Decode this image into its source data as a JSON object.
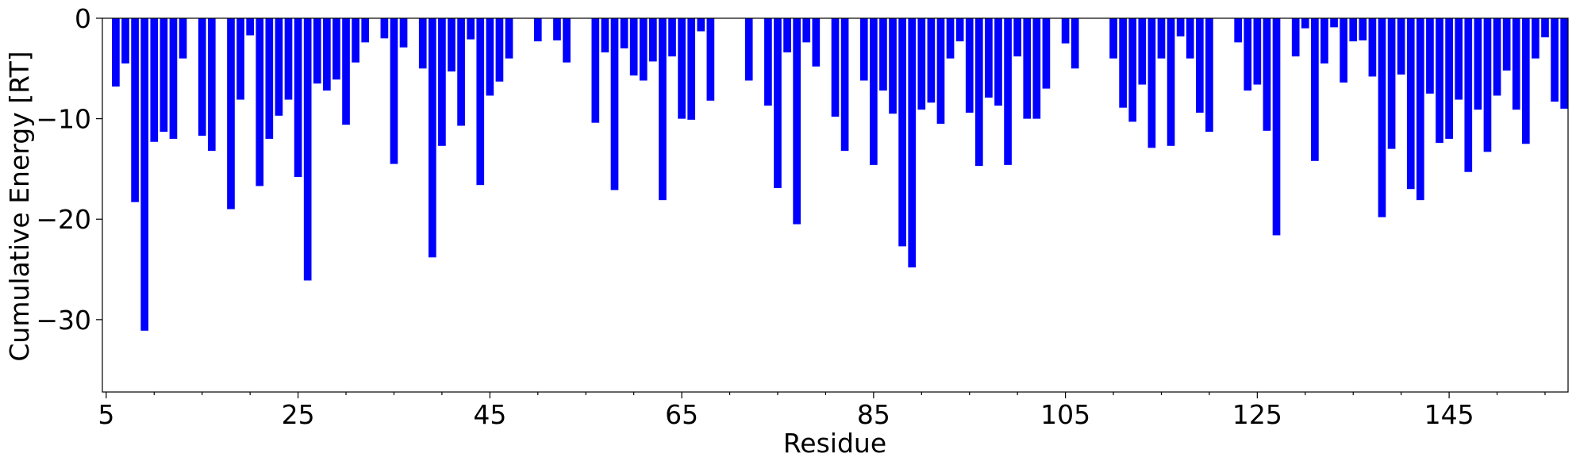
{
  "chart_data": {
    "type": "bar",
    "x_label": "Residue",
    "y_label": "Cumulative Energy [RT]",
    "color": "#0000ff",
    "x": [
      6,
      7,
      8,
      9,
      10,
      11,
      12,
      13,
      15,
      16,
      18,
      19,
      20,
      21,
      22,
      23,
      24,
      25,
      26,
      27,
      28,
      29,
      30,
      31,
      32,
      34,
      35,
      36,
      38,
      39,
      40,
      41,
      42,
      43,
      44,
      45,
      46,
      47,
      50,
      52,
      53,
      56,
      57,
      58,
      59,
      60,
      61,
      62,
      63,
      64,
      65,
      66,
      67,
      68,
      72,
      74,
      75,
      76,
      77,
      78,
      79,
      81,
      82,
      84,
      85,
      86,
      87,
      88,
      89,
      90,
      91,
      92,
      93,
      94,
      95,
      96,
      97,
      98,
      99,
      100,
      101,
      102,
      103,
      105,
      106,
      110,
      111,
      112,
      113,
      114,
      115,
      116,
      117,
      118,
      119,
      120,
      123,
      124,
      125,
      126,
      127,
      129,
      130,
      131,
      132,
      133,
      134,
      135,
      136,
      137,
      138,
      139,
      140,
      141,
      142,
      143,
      144,
      145,
      146,
      147,
      148,
      149,
      150,
      151,
      152,
      153,
      154,
      155,
      156,
      157
    ],
    "values": [
      -6.8,
      -4.5,
      -18.3,
      -31.1,
      -12.3,
      -11.3,
      -12.0,
      -4.0,
      -11.7,
      -13.2,
      -19.0,
      -8.1,
      -1.7,
      -16.7,
      -12.0,
      -9.7,
      -8.1,
      -15.8,
      -26.1,
      -6.5,
      -7.2,
      -6.1,
      -10.6,
      -4.4,
      -2.4,
      -2.0,
      -14.5,
      -2.9,
      -5.0,
      -23.8,
      -12.7,
      -5.3,
      -10.7,
      -2.1,
      -16.6,
      -7.7,
      -6.3,
      -4.0,
      -2.3,
      -2.2,
      -4.4,
      -10.4,
      -3.4,
      -17.1,
      -3.0,
      -5.7,
      -6.2,
      -4.3,
      -18.1,
      -3.8,
      -10.0,
      -10.1,
      -1.3,
      -8.2,
      -6.2,
      -8.7,
      -16.9,
      -3.4,
      -20.5,
      -2.4,
      -4.8,
      -9.8,
      -13.2,
      -6.2,
      -14.6,
      -7.2,
      -9.5,
      -22.7,
      -24.8,
      -9.1,
      -8.4,
      -10.5,
      -4.0,
      -2.3,
      -9.4,
      -14.7,
      -7.9,
      -8.7,
      -14.6,
      -3.8,
      -10.0,
      -10.0,
      -7.0,
      -2.5,
      -5.0,
      -4.0,
      -8.9,
      -10.3,
      -6.6,
      -12.9,
      -4.0,
      -12.7,
      -1.8,
      -4.0,
      -9.4,
      -11.3,
      -2.4,
      -7.2,
      -6.6,
      -11.2,
      -21.6,
      -3.8,
      -1.0,
      -14.2,
      -4.5,
      -0.9,
      -6.4,
      -2.3,
      -2.2,
      -5.8,
      -19.8,
      -13.0,
      -5.6,
      -17.0,
      -18.1,
      -7.5,
      -12.4,
      -12.0,
      -8.1,
      -15.3,
      -9.1,
      -13.3,
      -7.7,
      -5.2,
      -9.1,
      -12.5,
      -4.0,
      -1.9,
      -8.3,
      -9.0
    ],
    "xlim": [
      4.6,
      157.4
    ],
    "xticks": [
      5,
      25,
      45,
      65,
      85,
      105,
      125,
      145
    ],
    "xminorticks": [
      10,
      15,
      20,
      30,
      35,
      40,
      50,
      55,
      60,
      70,
      75,
      80,
      90,
      95,
      100,
      110,
      115,
      120,
      130,
      135,
      140,
      150,
      155
    ],
    "ylim": [
      -37.2,
      0
    ],
    "yticks": [
      {
        "value": -30,
        "label": "−30"
      },
      {
        "value": -20,
        "label": "−20"
      },
      {
        "value": -10,
        "label": "−10"
      },
      0
    ],
    "grid": false
  }
}
